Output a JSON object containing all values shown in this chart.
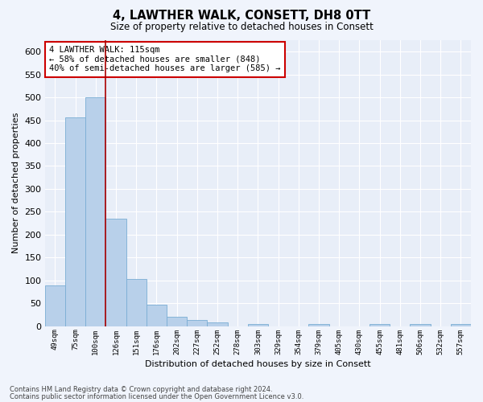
{
  "title": "4, LAWTHER WALK, CONSETT, DH8 0TT",
  "subtitle": "Size of property relative to detached houses in Consett",
  "xlabel": "Distribution of detached houses by size in Consett",
  "ylabel": "Number of detached properties",
  "bar_color": "#b8d0ea",
  "bar_edge_color": "#7aadd4",
  "bg_color": "#e8eef8",
  "grid_color": "#ffffff",
  "fig_bg_color": "#f0f4fc",
  "categories": [
    "49sqm",
    "75sqm",
    "100sqm",
    "126sqm",
    "151sqm",
    "176sqm",
    "202sqm",
    "227sqm",
    "252sqm",
    "278sqm",
    "303sqm",
    "329sqm",
    "354sqm",
    "379sqm",
    "405sqm",
    "430sqm",
    "455sqm",
    "481sqm",
    "506sqm",
    "532sqm",
    "557sqm"
  ],
  "values": [
    88,
    457,
    500,
    235,
    103,
    47,
    20,
    13,
    8,
    0,
    5,
    0,
    0,
    5,
    0,
    0,
    5,
    0,
    5,
    0,
    5
  ],
  "red_line_x": 2,
  "annotation_text": "4 LAWTHER WALK: 115sqm\n← 58% of detached houses are smaller (848)\n40% of semi-detached houses are larger (585) →",
  "annotation_box_color": "#ffffff",
  "annotation_box_edge": "#cc0000",
  "red_line_color": "#aa0000",
  "ylim": [
    0,
    625
  ],
  "yticks": [
    0,
    50,
    100,
    150,
    200,
    250,
    300,
    350,
    400,
    450,
    500,
    550,
    600
  ],
  "footer_line1": "Contains HM Land Registry data © Crown copyright and database right 2024.",
  "footer_line2": "Contains public sector information licensed under the Open Government Licence v3.0."
}
